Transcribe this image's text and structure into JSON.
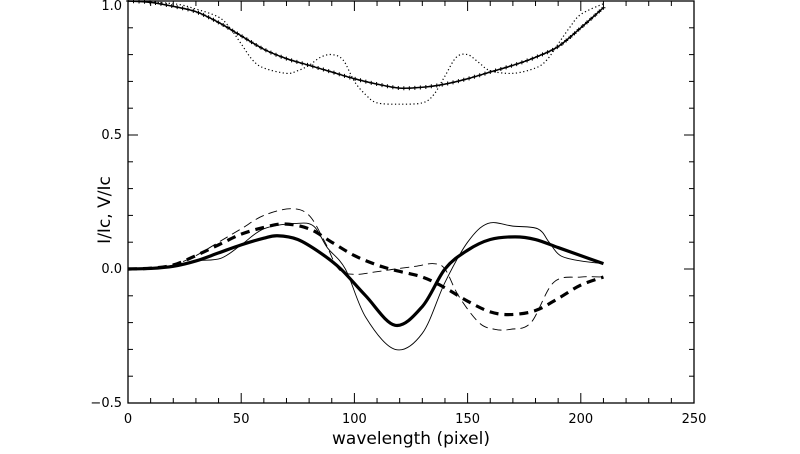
{
  "chart_data": {
    "type": "line",
    "title": "",
    "xlabel": "wavelength (pixel)",
    "ylabel": "I/Ic, V/Ic",
    "xlim": [
      0,
      250
    ],
    "ylim": [
      -0.5,
      1.0
    ],
    "xticks": [
      "0",
      "50",
      "100",
      "150",
      "200",
      "250"
    ],
    "yticks": [
      "−0.5",
      "0.0",
      "0.5",
      "1.0"
    ],
    "grid": false,
    "series": [
      {
        "style": "solid-plus",
        "x": [
          0,
          10,
          20,
          30,
          40,
          50,
          60,
          70,
          80,
          90,
          100,
          110,
          120,
          130,
          140,
          150,
          160,
          170,
          180,
          190,
          200,
          210
        ],
        "y": [
          1.0,
          0.995,
          0.98,
          0.96,
          0.92,
          0.87,
          0.82,
          0.785,
          0.76,
          0.735,
          0.71,
          0.69,
          0.675,
          0.678,
          0.69,
          0.71,
          0.735,
          0.76,
          0.79,
          0.83,
          0.9,
          0.975
        ]
      },
      {
        "style": "dotted",
        "x": [
          0,
          20,
          30,
          40,
          45,
          50,
          55,
          60,
          70,
          75,
          80,
          85,
          90,
          95,
          100,
          105,
          110,
          120,
          130,
          135,
          140,
          145,
          150,
          155,
          160,
          170,
          180,
          185,
          190,
          195,
          200,
          210
        ],
        "y": [
          1.0,
          0.99,
          0.97,
          0.94,
          0.9,
          0.84,
          0.78,
          0.75,
          0.73,
          0.74,
          0.76,
          0.79,
          0.8,
          0.78,
          0.7,
          0.65,
          0.62,
          0.615,
          0.62,
          0.65,
          0.72,
          0.79,
          0.8,
          0.77,
          0.74,
          0.73,
          0.75,
          0.78,
          0.84,
          0.9,
          0.95,
          0.99
        ]
      },
      {
        "style": "thick-solid",
        "x": [
          0,
          10,
          20,
          30,
          40,
          50,
          60,
          66,
          75,
          85,
          94,
          105,
          118,
          130,
          140,
          150,
          160,
          171,
          180,
          190,
          200,
          210
        ],
        "y": [
          0,
          0.002,
          0.01,
          0.03,
          0.06,
          0.09,
          0.115,
          0.124,
          0.11,
          0.06,
          0.0,
          -0.1,
          -0.21,
          -0.14,
          0.0,
          0.07,
          0.11,
          0.12,
          0.11,
          0.08,
          0.05,
          0.02
        ]
      },
      {
        "style": "thin-solid",
        "x": [
          0,
          10,
          20,
          30,
          41,
          50,
          60,
          74,
          82,
          88,
          96,
          105,
          118,
          130,
          140,
          150,
          159,
          170,
          181,
          186,
          191,
          200,
          210
        ],
        "y": [
          0,
          0.002,
          0.01,
          0.03,
          0.04,
          0.09,
          0.15,
          0.17,
          0.16,
          0.08,
          0.0,
          -0.18,
          -0.3,
          -0.24,
          -0.05,
          0.1,
          0.17,
          0.16,
          0.15,
          0.1,
          0.05,
          0.03,
          0.02
        ]
      },
      {
        "style": "thick-dashed",
        "x": [
          0,
          10,
          20,
          30,
          40,
          50,
          60,
          69,
          80,
          90,
          100,
          110,
          118,
          130,
          140,
          150,
          160,
          169,
          180,
          190,
          200,
          210
        ],
        "y": [
          0,
          0.003,
          0.015,
          0.05,
          0.09,
          0.13,
          0.155,
          0.168,
          0.15,
          0.1,
          0.05,
          0.015,
          -0.005,
          -0.03,
          -0.07,
          -0.12,
          -0.16,
          -0.17,
          -0.155,
          -0.11,
          -0.06,
          -0.03
        ]
      },
      {
        "style": "thin-dashed",
        "x": [
          0,
          10,
          20,
          30,
          40,
          50,
          60,
          72,
          80,
          87,
          93,
          100,
          110,
          118,
          127,
          135,
          140,
          146,
          155,
          162,
          169,
          178,
          188,
          200,
          210
        ],
        "y": [
          0,
          0.003,
          0.015,
          0.05,
          0.1,
          0.15,
          0.2,
          0.225,
          0.2,
          0.1,
          0.0,
          -0.02,
          -0.01,
          0.0,
          0.01,
          0.02,
          0.0,
          -0.1,
          -0.2,
          -0.225,
          -0.225,
          -0.2,
          -0.05,
          -0.03,
          -0.03
        ]
      }
    ]
  }
}
